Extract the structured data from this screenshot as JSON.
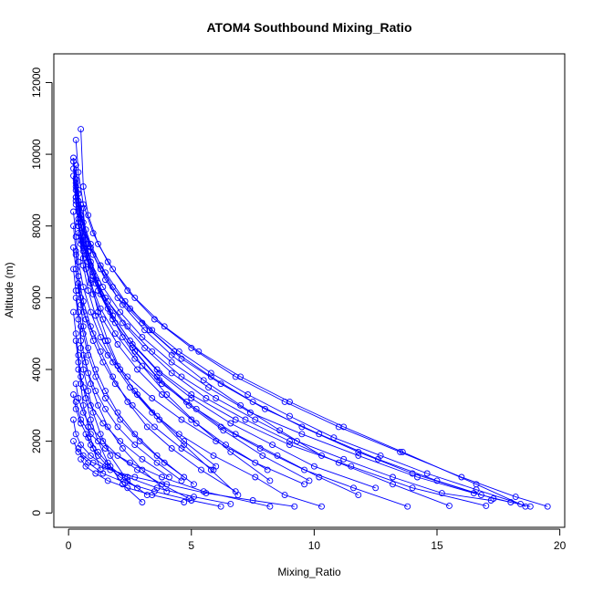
{
  "chart_data": {
    "type": "line",
    "title": "ATOM4 Southbound Mixing_Ratio",
    "xlabel": "Mixing_Ratio",
    "ylabel": "Altitude (m)",
    "xlim": [
      -0.6,
      20.2
    ],
    "ylim": [
      -400,
      12800
    ],
    "xticks": [
      0,
      5,
      10,
      15,
      20
    ],
    "yticks": [
      0,
      2000,
      4000,
      6000,
      8000,
      10000,
      12000
    ],
    "grid": false,
    "legend": "none",
    "marker": "open-circle",
    "color": "#0000ff",
    "series": [
      {
        "x": [
          0.3,
          0.4,
          0.6,
          1.0,
          1.6,
          2.4,
          3.5,
          5.0,
          6.8,
          8.8,
          11.0,
          13.5,
          16.0,
          18.2,
          19.5
        ],
        "y": [
          10400,
          9500,
          8600,
          7800,
          7000,
          6200,
          5400,
          4600,
          3800,
          3100,
          2400,
          1700,
          1000,
          450,
          180
        ]
      },
      {
        "x": [
          0.2,
          0.3,
          0.5,
          0.9,
          1.5,
          2.3,
          3.3,
          4.6,
          6.2,
          8.0,
          10.2,
          12.6,
          15.0,
          17.3,
          18.8
        ],
        "y": [
          9800,
          9000,
          8200,
          7400,
          6700,
          5900,
          5100,
          4300,
          3600,
          2900,
          2200,
          1500,
          900,
          400,
          180
        ]
      },
      {
        "x": [
          0.5,
          0.6,
          0.8,
          1.2,
          1.8,
          2.7,
          3.9,
          5.3,
          7.0,
          9.0,
          11.2,
          13.6,
          16.6,
          18.6
        ],
        "y": [
          10700,
          9100,
          8300,
          7500,
          6800,
          6000,
          5200,
          4500,
          3800,
          3100,
          2400,
          1700,
          800,
          180
        ]
      },
      {
        "x": [
          0.3,
          0.4,
          0.6,
          0.9,
          1.4,
          2.1,
          3.0,
          4.2,
          5.7,
          7.4,
          9.5,
          11.8,
          14.2,
          16.5,
          18.0
        ],
        "y": [
          9200,
          8500,
          7700,
          7000,
          6300,
          5600,
          4900,
          4200,
          3500,
          2800,
          2200,
          1600,
          1000,
          550,
          300
        ]
      },
      {
        "x": [
          0.2,
          0.3,
          0.4,
          0.7,
          1.1,
          1.7,
          2.5,
          3.6,
          5.0,
          6.8,
          9.0,
          11.5,
          14.0,
          17.0
        ],
        "y": [
          9600,
          8800,
          8000,
          7200,
          6400,
          5600,
          4800,
          4000,
          3300,
          2600,
          1900,
          1300,
          700,
          200
        ]
      },
      {
        "x": [
          0.4,
          0.5,
          0.8,
          1.3,
          2.0,
          3.0,
          4.3,
          5.8,
          7.5,
          9.5,
          11.8,
          14.0,
          16.8
        ],
        "y": [
          9000,
          8300,
          7500,
          6800,
          6000,
          5300,
          4500,
          3800,
          3100,
          2400,
          1700,
          1100,
          500
        ]
      },
      {
        "x": [
          0.3,
          0.4,
          0.6,
          1.0,
          1.5,
          2.2,
          3.1,
          4.2,
          5.6,
          7.2,
          9.0,
          11.0,
          13.2,
          15.5
        ],
        "y": [
          8800,
          8100,
          7400,
          6700,
          6000,
          5300,
          4600,
          3900,
          3200,
          2600,
          2000,
          1400,
          800,
          200
        ]
      },
      {
        "x": [
          0.2,
          0.3,
          0.5,
          0.8,
          1.2,
          1.8,
          2.6,
          3.6,
          4.8,
          6.2,
          7.8,
          9.6,
          11.6,
          13.8
        ],
        "y": [
          9400,
          8600,
          7800,
          7000,
          6200,
          5400,
          4600,
          3800,
          3100,
          2400,
          1800,
          1200,
          700,
          180
        ]
      },
      {
        "x": [
          0.5,
          0.7,
          1.0,
          1.5,
          2.2,
          3.1,
          4.2,
          5.5,
          7.0,
          8.6,
          10.3
        ],
        "y": [
          8600,
          7900,
          7200,
          6500,
          5800,
          5100,
          4400,
          3700,
          3000,
          2300,
          1600
        ]
      },
      {
        "x": [
          0.3,
          0.4,
          0.6,
          0.9,
          1.3,
          1.9,
          2.7,
          3.7,
          4.9,
          6.3,
          7.9,
          9.8
        ],
        "y": [
          9100,
          8400,
          7600,
          6900,
          6100,
          5300,
          4500,
          3700,
          3000,
          2300,
          1600,
          900
        ]
      },
      {
        "x": [
          0.2,
          0.3,
          0.4,
          0.6,
          0.9,
          1.3,
          1.8,
          2.5,
          3.4,
          4.5,
          5.9,
          7.6,
          8.8,
          10.3
        ],
        "y": [
          8400,
          7700,
          7000,
          6300,
          5600,
          4900,
          4200,
          3500,
          2800,
          2200,
          1600,
          1000,
          500,
          180
        ]
      },
      {
        "x": [
          0.4,
          0.5,
          0.7,
          1.0,
          1.4,
          2.0,
          2.8,
          3.8,
          5.0,
          6.4,
          8.1
        ],
        "y": [
          8200,
          7500,
          6800,
          6100,
          5400,
          4700,
          4000,
          3300,
          2600,
          1900,
          1200
        ]
      },
      {
        "x": [
          0.3,
          0.4,
          0.5,
          0.8,
          1.1,
          1.6,
          2.2,
          3.0,
          4.0,
          5.2,
          6.6,
          8.2
        ],
        "y": [
          9700,
          8900,
          8100,
          7300,
          6500,
          5700,
          4900,
          4100,
          3300,
          2500,
          1700,
          900
        ]
      },
      {
        "x": [
          0.2,
          0.3,
          0.4,
          0.6,
          0.9,
          1.3,
          1.8,
          2.4,
          3.2,
          4.2,
          5.4,
          6.8
        ],
        "y": [
          8000,
          7300,
          6600,
          5900,
          5200,
          4500,
          3800,
          3100,
          2400,
          1800,
          1200,
          600
        ]
      },
      {
        "x": [
          0.5,
          0.6,
          0.8,
          1.1,
          1.5,
          2.0,
          2.7,
          3.6,
          4.7,
          6.0
        ],
        "y": [
          7600,
          6900,
          6200,
          5500,
          4800,
          4100,
          3400,
          2700,
          2000,
          1300
        ]
      },
      {
        "x": [
          0.3,
          0.4,
          0.5,
          0.7,
          1.0,
          1.4,
          1.9,
          2.6,
          3.5,
          4.6,
          5.9
        ],
        "y": [
          7200,
          6600,
          6000,
          5400,
          4800,
          4200,
          3600,
          3000,
          2400,
          1800,
          1200
        ]
      },
      {
        "x": [
          0.2,
          0.3,
          0.4,
          0.6,
          0.8,
          1.1,
          1.5,
          2.1,
          2.9,
          3.9,
          5.1
        ],
        "y": [
          6800,
          6200,
          5600,
          5000,
          4400,
          3800,
          3200,
          2600,
          2000,
          1400,
          800
        ]
      },
      {
        "x": [
          0.4,
          0.5,
          0.6,
          0.8,
          1.1,
          1.5,
          2.0,
          2.7,
          3.6,
          4.7
        ],
        "y": [
          6400,
          5800,
          5200,
          4600,
          4000,
          3400,
          2800,
          2200,
          1600,
          1000
        ]
      },
      {
        "x": [
          0.3,
          0.4,
          0.5,
          0.7,
          0.9,
          1.2,
          1.6,
          2.2,
          3.0,
          4.0
        ],
        "y": [
          6000,
          5400,
          4800,
          4200,
          3600,
          3000,
          2400,
          1800,
          1200,
          600
        ]
      },
      {
        "x": [
          0.2,
          0.3,
          0.4,
          0.5,
          0.7,
          0.9,
          1.2,
          1.6,
          2.2,
          3.0
        ],
        "y": [
          5600,
          5000,
          4400,
          3800,
          3200,
          2600,
          2000,
          1400,
          800,
          300
        ]
      },
      {
        "x": [
          0.5,
          0.5,
          0.6,
          0.8,
          1.0,
          1.3,
          1.7,
          2.3
        ],
        "y": [
          5200,
          4600,
          4000,
          3400,
          2800,
          2200,
          1600,
          1000
        ]
      },
      {
        "x": [
          0.3,
          0.4,
          0.5,
          0.6,
          0.8,
          1.0,
          1.3
        ],
        "y": [
          4800,
          4200,
          3600,
          3000,
          2400,
          1800,
          1200
        ]
      },
      {
        "x": [
          0.6,
          0.7,
          0.9,
          1.2,
          1.6,
          2.1,
          2.8,
          3.7,
          4.7,
          5.8,
          6.9
        ],
        "y": [
          8500,
          7500,
          6500,
          5600,
          4800,
          4000,
          3300,
          2600,
          1900,
          1200,
          500
        ]
      },
      {
        "x": [
          0.4,
          0.6,
          0.9,
          1.3,
          1.9,
          2.7,
          3.8,
          5.2,
          6.8,
          8.5,
          10.2,
          11.8
        ],
        "y": [
          7800,
          7100,
          6400,
          5700,
          5000,
          4300,
          3600,
          2900,
          2200,
          1600,
          1000,
          500
        ]
      },
      {
        "x": [
          0.3,
          0.5,
          0.8,
          1.2,
          1.8,
          2.6,
          3.7,
          5.0,
          6.6,
          8.3,
          10.0,
          12.5
        ],
        "y": [
          9300,
          8300,
          7300,
          6400,
          5500,
          4700,
          3900,
          3200,
          2500,
          1900,
          1300,
          700
        ]
      },
      {
        "x": [
          0.2,
          0.3,
          0.5,
          0.9,
          1.5,
          2.4,
          3.6,
          5.1,
          6.6
        ],
        "y": [
          2600,
          2200,
          1900,
          1600,
          1300,
          1000,
          700,
          450,
          250
        ]
      },
      {
        "x": [
          0.3,
          0.5,
          0.9,
          1.5,
          2.5,
          3.8,
          5.5,
          8.2
        ],
        "y": [
          3100,
          2600,
          2200,
          1800,
          1400,
          1000,
          600,
          180
        ]
      },
      {
        "x": [
          0.2,
          0.4,
          0.8,
          1.4,
          2.3,
          3.5,
          5.0,
          6.2
        ],
        "y": [
          2000,
          1700,
          1400,
          1100,
          850,
          600,
          350,
          180
        ]
      },
      {
        "x": [
          0.4,
          0.6,
          1.0,
          1.7,
          2.7,
          4.0,
          5.6,
          7.5,
          9.2
        ],
        "y": [
          1800,
          1600,
          1400,
          1200,
          1000,
          800,
          550,
          350,
          180
        ]
      },
      {
        "x": [
          0.5,
          0.7,
          1.1,
          1.6,
          2.4,
          3.4,
          4.7
        ],
        "y": [
          1500,
          1300,
          1100,
          900,
          700,
          500,
          300
        ]
      },
      {
        "x": [
          0.3,
          0.4,
          0.6,
          1.0,
          1.6,
          2.4,
          3.4,
          4.6,
          6.0,
          7.6,
          9.3,
          11.2,
          13.2,
          15.2,
          17.2
        ],
        "y": [
          8700,
          8000,
          7300,
          6600,
          5900,
          5200,
          4500,
          3800,
          3200,
          2600,
          2000,
          1500,
          1000,
          550,
          350
        ]
      },
      {
        "x": [
          0.2,
          0.3,
          0.4,
          0.6,
          1.0,
          1.6,
          2.4,
          3.4,
          4.6,
          6.0,
          7.6,
          9.6
        ],
        "y": [
          7400,
          6800,
          6200,
          5600,
          5000,
          4400,
          3800,
          3200,
          2600,
          2000,
          1400,
          800
        ]
      },
      {
        "x": [
          0.6,
          0.8,
          1.1,
          1.5,
          2.0,
          2.7,
          3.6,
          4.6
        ],
        "y": [
          4400,
          3900,
          3400,
          2900,
          2400,
          1900,
          1400,
          900
        ]
      },
      {
        "x": [
          0.4,
          0.6,
          0.9,
          1.4,
          2.1,
          3.0,
          4.1
        ],
        "y": [
          4000,
          3500,
          3000,
          2500,
          2000,
          1500,
          1000
        ]
      },
      {
        "x": [
          0.3,
          0.4,
          0.6,
          0.9,
          1.4,
          2.0,
          2.8,
          3.8,
          4.9
        ],
        "y": [
          3600,
          3200,
          2800,
          2400,
          2000,
          1600,
          1200,
          800,
          400
        ]
      },
      {
        "x": [
          0.2,
          0.3,
          0.5,
          0.8,
          1.2,
          1.7,
          2.4,
          3.2
        ],
        "y": [
          3300,
          2900,
          2500,
          2100,
          1700,
          1300,
          900,
          500
        ]
      },
      {
        "x": [
          0.7,
          0.9,
          1.2,
          1.6,
          2.1,
          2.8
        ],
        "y": [
          2200,
          1900,
          1600,
          1300,
          1000,
          700
        ]
      },
      {
        "x": [
          0.2,
          0.3,
          0.4,
          0.6,
          0.9,
          1.3,
          1.8,
          2.5,
          3.4,
          4.5,
          5.8,
          7.3,
          9.0,
          10.8,
          12.7,
          14.6,
          16.6,
          18.4
        ],
        "y": [
          9900,
          9300,
          8700,
          8100,
          7500,
          6900,
          6300,
          5700,
          5100,
          4500,
          3900,
          3300,
          2700,
          2100,
          1600,
          1100,
          650,
          250
        ]
      }
    ]
  }
}
